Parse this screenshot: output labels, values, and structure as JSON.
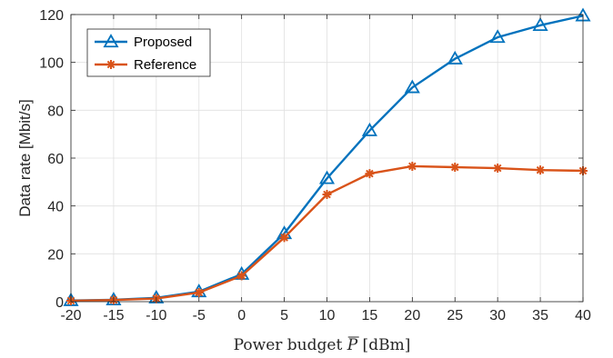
{
  "chart_data": {
    "type": "line",
    "x": [
      -20,
      -15,
      -10,
      -5,
      0,
      5,
      10,
      15,
      20,
      25,
      30,
      35,
      40
    ],
    "series": [
      {
        "name": "Proposed",
        "color": "#0072BD",
        "marker": "triangle",
        "values": [
          0.5,
          0.8,
          1.6,
          4.2,
          11.5,
          28.5,
          51.5,
          71.5,
          89.5,
          101.5,
          110.5,
          115.5,
          119.5
        ]
      },
      {
        "name": "Reference",
        "color": "#D95319",
        "marker": "asterisk",
        "values": [
          0.4,
          0.7,
          1.3,
          3.8,
          10.8,
          26.8,
          44.8,
          53.5,
          56.6,
          56.2,
          55.8,
          55.0,
          54.7
        ]
      }
    ],
    "xlabel_prefix": "Power budget ",
    "xlabel_symbol": "P",
    "xlabel_unit": " [dBm]",
    "ylabel": "Data rate [Mbit/s]",
    "xlim": [
      -20,
      40
    ],
    "ylim": [
      0,
      120
    ],
    "xticks": [
      -20,
      -15,
      -10,
      -5,
      0,
      5,
      10,
      15,
      20,
      25,
      30,
      35,
      40
    ],
    "yticks": [
      0,
      20,
      40,
      60,
      80,
      100,
      120
    ],
    "grid": true,
    "legend_position": "top-left"
  }
}
